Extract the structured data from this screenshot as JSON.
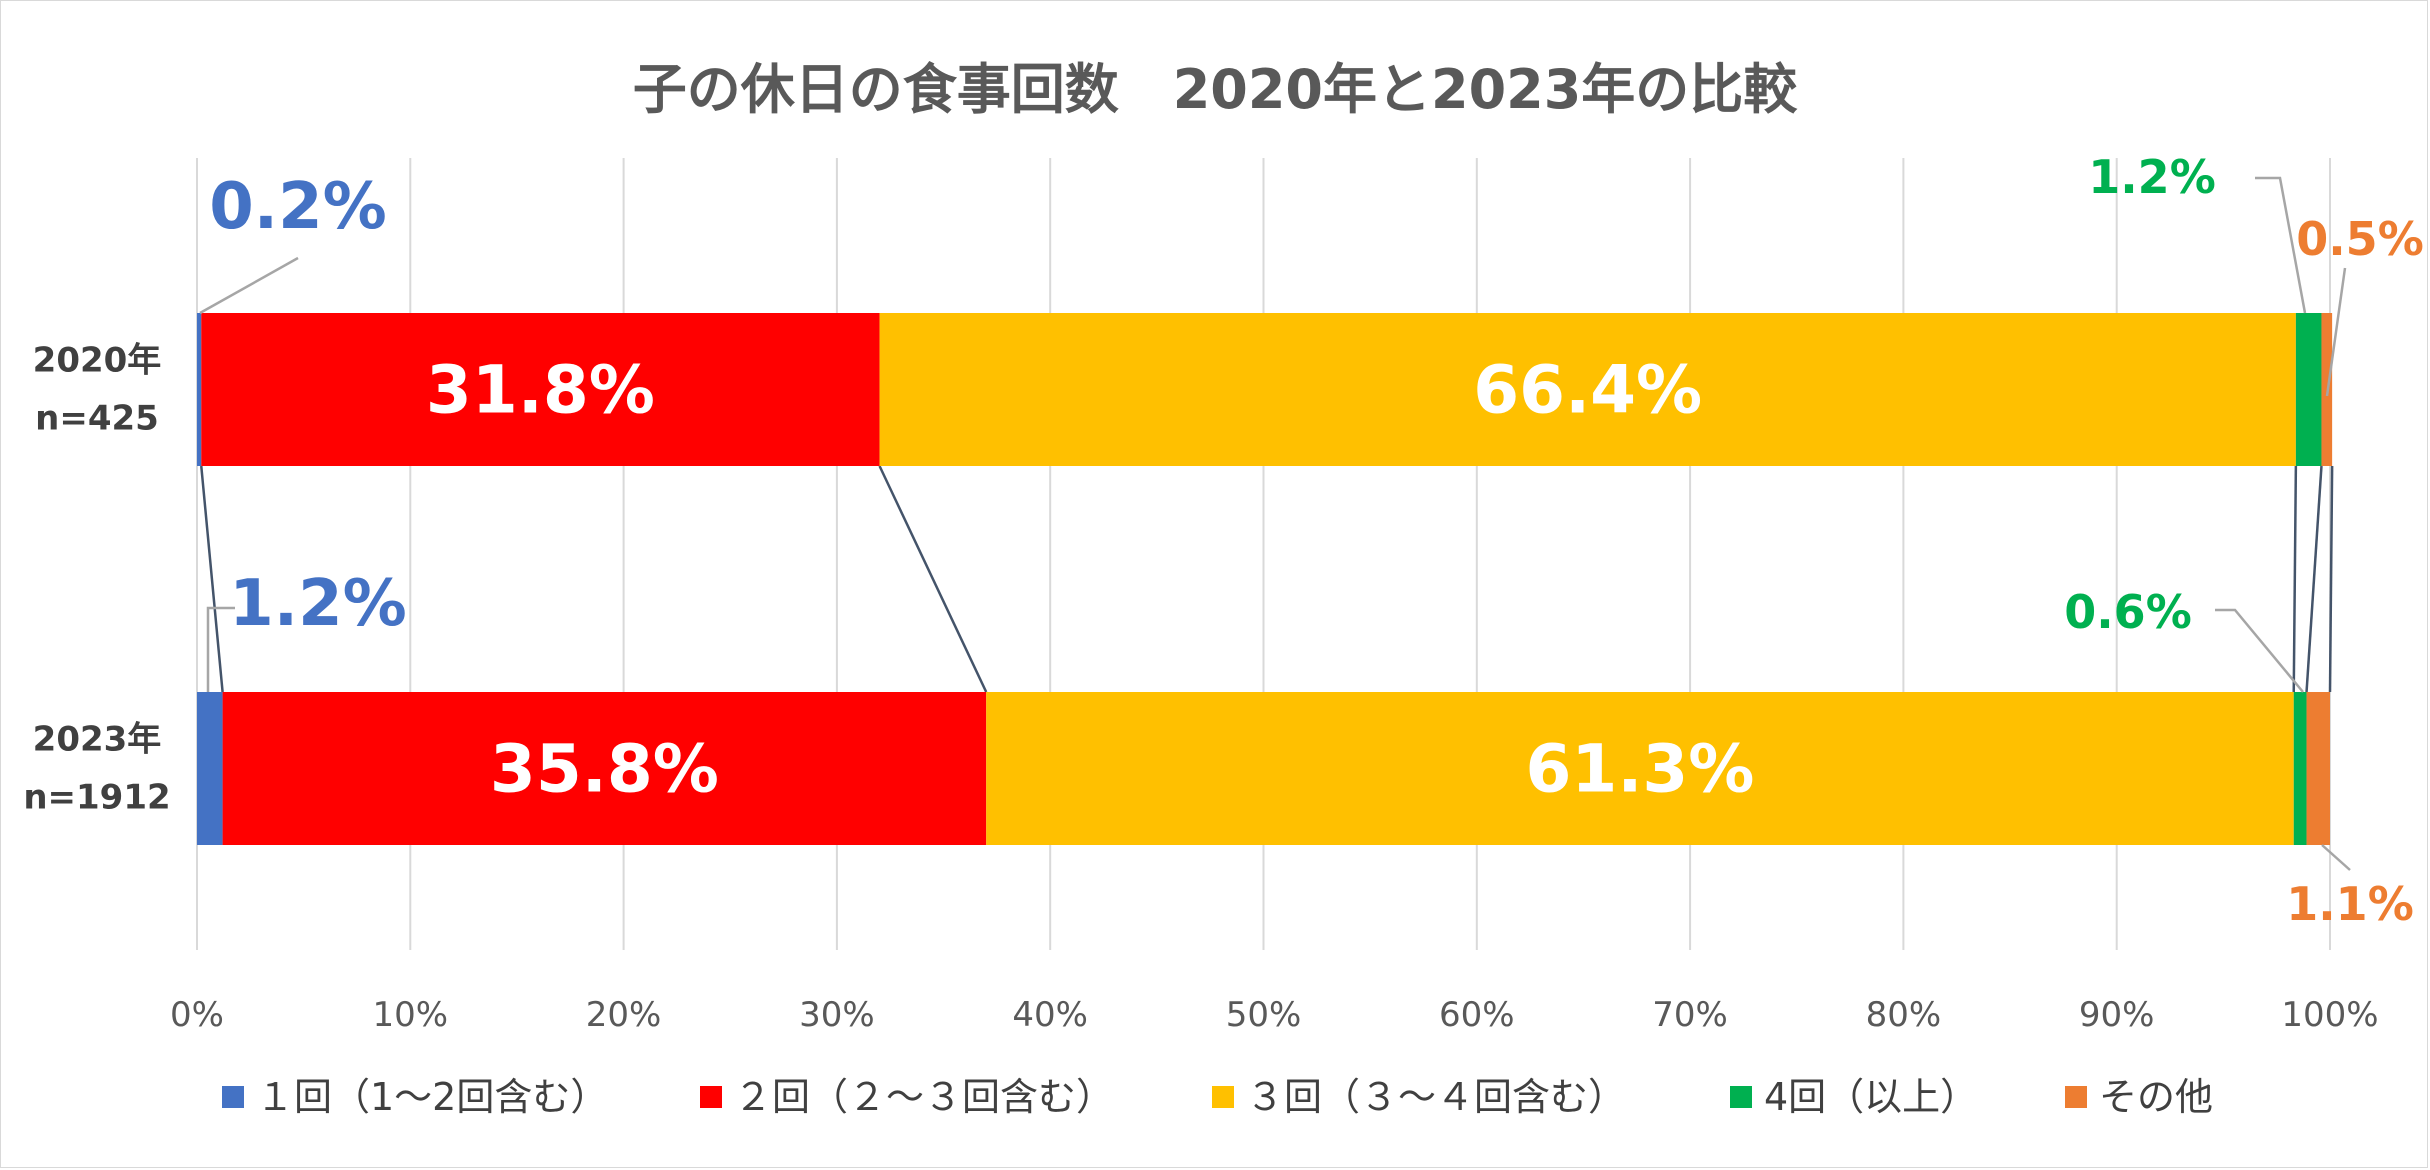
{
  "chart_data": {
    "type": "bar",
    "orientation": "horizontal",
    "stacked": "100%",
    "title": "子の休日の食事回数　2020年と2023年の比較",
    "categories": [
      {
        "year": "2020年",
        "n": "n=425"
      },
      {
        "year": "2023年",
        "n": "n=1912"
      }
    ],
    "series": [
      {
        "name": "１回（1～2回含む）",
        "color": "#4472C4",
        "values": [
          0.2,
          1.2
        ],
        "labels": [
          "0.2%",
          "1.2%"
        ]
      },
      {
        "name": "２回（２～３回含む）",
        "color": "#FF0000",
        "values": [
          31.8,
          35.8
        ],
        "labels": [
          "31.8%",
          "35.8%"
        ]
      },
      {
        "name": "３回（３～４回含む）",
        "color": "#FFC000",
        "values": [
          66.4,
          61.3
        ],
        "labels": [
          "66.4%",
          "61.3%"
        ]
      },
      {
        "name": "4回（以上）",
        "color": "#00B050",
        "values": [
          1.2,
          0.6
        ],
        "labels": [
          "1.2%",
          "0.6%"
        ]
      },
      {
        "name": "その他",
        "color": "#ED7D31",
        "values": [
          0.5,
          1.1
        ],
        "labels": [
          "0.5%",
          "1.1%"
        ]
      }
    ],
    "xlim": [
      0,
      100
    ],
    "xticks": [
      "0%",
      "10%",
      "20%",
      "30%",
      "40%",
      "50%",
      "60%",
      "70%",
      "80%",
      "90%",
      "100%"
    ],
    "grid": true,
    "series_lines": true,
    "legend_position": "bottom"
  }
}
